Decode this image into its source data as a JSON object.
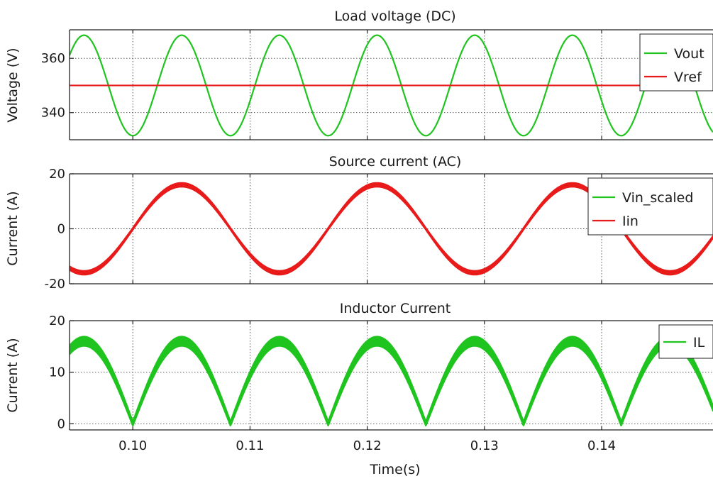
{
  "figure": {
    "xlabel": "Time(s)"
  },
  "chart_data": [
    {
      "type": "line",
      "title": "Load voltage (DC)",
      "xlabel": "",
      "ylabel": "Voltage (V)",
      "xlim": [
        0.0946,
        0.1495
      ],
      "ylim": [
        330,
        370.5
      ],
      "xticks": [
        0.1,
        0.11,
        0.12,
        0.13,
        0.14
      ],
      "xtick_labels": [
        "0.10",
        "0.11",
        "0.12",
        "0.13",
        "0.14"
      ],
      "show_xtick_labels": false,
      "yticks": [
        340,
        360
      ],
      "ytick_labels": [
        "340",
        "360"
      ],
      "grid": true,
      "legend": "top-right",
      "series": [
        {
          "name": "Vout",
          "color": "#1fc41f",
          "kind": "sine",
          "offset": 350,
          "amplitude": 18.5,
          "frequency_hz": 120,
          "phase_ref_time": 0.09375,
          "ripple": 0
        },
        {
          "name": "Vref",
          "color": "#e81a1a",
          "kind": "const",
          "value": 350
        }
      ]
    },
    {
      "type": "line",
      "title": "Source current (AC)",
      "xlabel": "",
      "ylabel": "Current (A)",
      "xlim": [
        0.0946,
        0.1495
      ],
      "ylim": [
        -20,
        20
      ],
      "xticks": [
        0.1,
        0.11,
        0.12,
        0.13,
        0.14
      ],
      "xtick_labels": [
        "0.10",
        "0.11",
        "0.12",
        "0.13",
        "0.14"
      ],
      "show_xtick_labels": false,
      "yticks": [
        -20,
        0,
        20
      ],
      "ytick_labels": [
        "-20",
        "0",
        "20"
      ],
      "grid": true,
      "legend": "top-right",
      "series": [
        {
          "name": "Vin_scaled",
          "color": "#1fc41f",
          "kind": "sine",
          "offset": 0,
          "amplitude": 16,
          "frequency_hz": 60,
          "phase_ref_time": 0.1,
          "ripple": 0
        },
        {
          "name": "Iin",
          "color": "#e81a1a",
          "kind": "sine_rippled",
          "offset": 0,
          "amplitude": 16,
          "frequency_hz": 60,
          "phase_ref_time": 0.1,
          "ripple": 0.7
        }
      ]
    },
    {
      "type": "line",
      "title": "Inductor Current",
      "xlabel": "Time(s)",
      "ylabel": "Current (A)",
      "xlim": [
        0.0946,
        0.1495
      ],
      "ylim": [
        -1.2,
        20
      ],
      "xticks": [
        0.1,
        0.11,
        0.12,
        0.13,
        0.14
      ],
      "xtick_labels": [
        "0.10",
        "0.11",
        "0.12",
        "0.13",
        "0.14"
      ],
      "show_xtick_labels": true,
      "yticks": [
        0,
        10,
        20
      ],
      "ytick_labels": [
        "0",
        "10",
        "20"
      ],
      "grid": true,
      "legend": "top-right",
      "series": [
        {
          "name": "IL",
          "color": "#1fc41f",
          "kind": "abs_sine_rippled",
          "offset": 0,
          "amplitude": 16,
          "frequency_hz": 60,
          "phase_ref_time": 0.1,
          "ripple": 0.9
        }
      ]
    }
  ]
}
